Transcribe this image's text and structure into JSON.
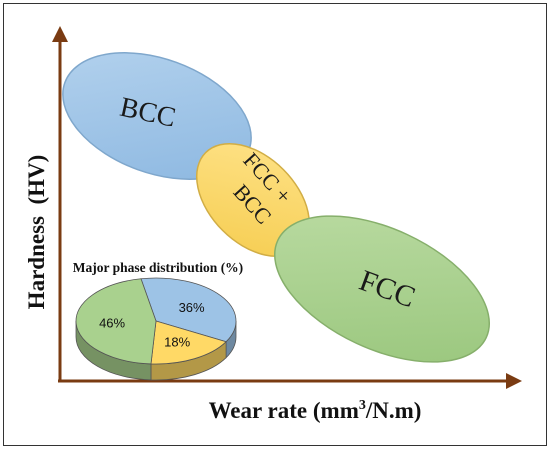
{
  "axes": {
    "x_label": "Wear rate (mm",
    "x_label_sup": "3",
    "x_label_tail": "/N.m)",
    "y_label": "Hardness  (HV)",
    "axis_color": "#7a3b12"
  },
  "phases": {
    "bcc": {
      "label": "BCC",
      "color": "#9dc3e6"
    },
    "fcc_bcc": {
      "label_line1": "FCC +",
      "label_line2": "BCC",
      "color": "#ffd966"
    },
    "fcc": {
      "label": "FCC",
      "color": "#a9d18e"
    }
  },
  "pie": {
    "title": "Major phase distribution (%)",
    "slices": [
      {
        "label": "36%",
        "value": 36,
        "color": "#9dc3e6"
      },
      {
        "label": "18%",
        "value": 18,
        "color": "#ffd966"
      },
      {
        "label": "46%",
        "value": 46,
        "color": "#a9d18e"
      }
    ]
  }
}
